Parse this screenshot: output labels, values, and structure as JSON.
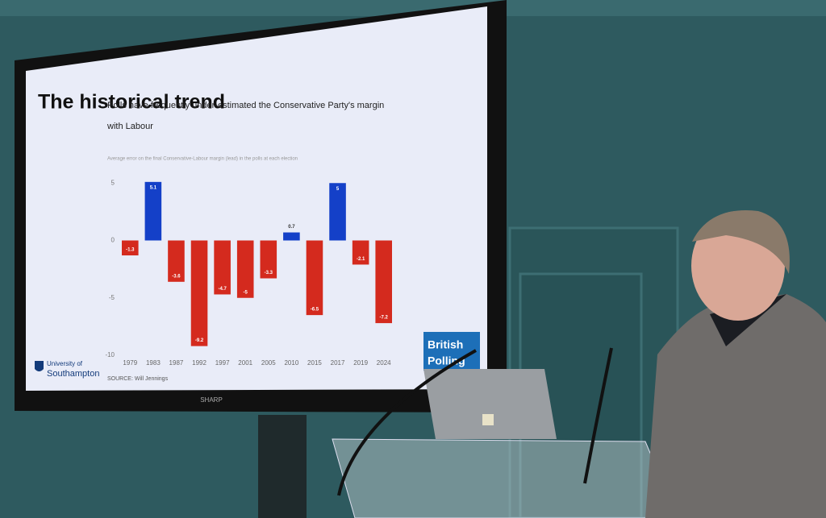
{
  "slide": {
    "heading": "The historical trend",
    "source": "SOURCE: Will Jennings",
    "university": [
      "University of",
      "Southampton"
    ],
    "brand": [
      "British",
      "Polling"
    ]
  },
  "tv_brand": "SHARP",
  "chart_data": {
    "type": "bar",
    "title": "Polls have frequently under-estimated the Conservative Party's margin with Labour",
    "subtitle": "Average error on the final Conservative-Labour margin (lead) in the polls at each election",
    "categories": [
      "1979",
      "1983",
      "1987",
      "1992",
      "1997",
      "2001",
      "2005",
      "2010",
      "2015",
      "2017",
      "2019",
      "2024"
    ],
    "values": [
      -1.3,
      5.1,
      -3.6,
      -9.2,
      -4.7,
      -5,
      -3.3,
      0.7,
      -6.5,
      5,
      -2.1,
      -7.2
    ],
    "color_positive": "#1440c8",
    "color_negative": "#d42a1e",
    "ylim": [
      -10,
      6
    ],
    "yticks": [
      5,
      0,
      -5,
      -10
    ],
    "grid": false
  }
}
